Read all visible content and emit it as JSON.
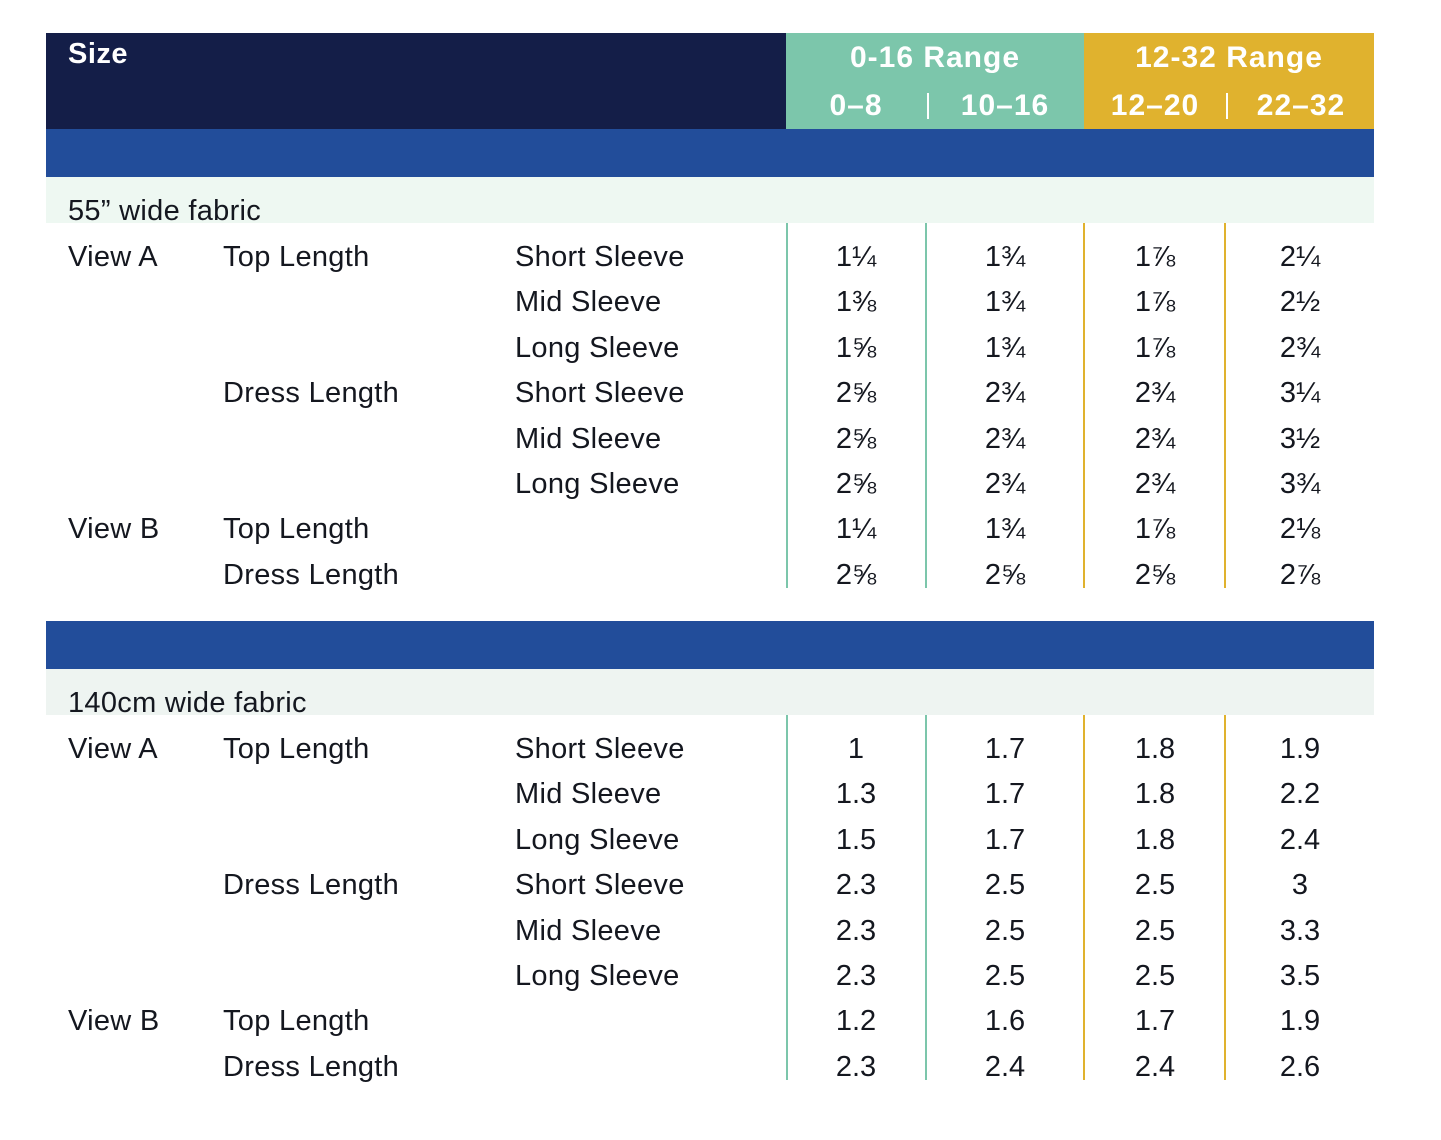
{
  "header": {
    "size_label": "Size",
    "range_0_16": {
      "title": "0-16 Range",
      "col1": "0–8",
      "col2": "10–16"
    },
    "range_12_32": {
      "title": "12-32 Range",
      "col1": "12–20",
      "col2": "22–32"
    }
  },
  "colors": {
    "navy": "#141e48",
    "band_blue": "#224d9a",
    "teal": "#7cc6ab",
    "gold": "#e0b22e",
    "section_tint_1": "#eef8f2",
    "section_tint_2": "#eef4f1"
  },
  "chart_data": {
    "type": "table",
    "columns": [
      "0–8",
      "10–16",
      "12–20",
      "22–32"
    ],
    "sections": [
      {
        "title": "55” wide fabric",
        "rows": [
          {
            "view": "View A",
            "length": "Top Length",
            "sleeve": "Short Sleeve",
            "values": [
              "1¼",
              "1¾",
              "1⅞",
              "2¼"
            ]
          },
          {
            "view": "",
            "length": "",
            "sleeve": "Mid Sleeve",
            "values": [
              "1⅜",
              "1¾",
              "1⅞",
              "2½"
            ]
          },
          {
            "view": "",
            "length": "",
            "sleeve": "Long Sleeve",
            "values": [
              "1⅝",
              "1¾",
              "1⅞",
              "2¾"
            ]
          },
          {
            "view": "",
            "length": "Dress Length",
            "sleeve": "Short Sleeve",
            "values": [
              "2⅝",
              "2¾",
              "2¾",
              "3¼"
            ]
          },
          {
            "view": "",
            "length": "",
            "sleeve": "Mid Sleeve",
            "values": [
              "2⅝",
              "2¾",
              "2¾",
              "3½"
            ]
          },
          {
            "view": "",
            "length": "",
            "sleeve": "Long Sleeve",
            "values": [
              "2⅝",
              "2¾",
              "2¾",
              "3¾"
            ]
          },
          {
            "view": "View B",
            "length": "Top Length",
            "sleeve": "",
            "values": [
              "1¼",
              "1¾",
              "1⅞",
              "2⅛"
            ]
          },
          {
            "view": "",
            "length": "Dress Length",
            "sleeve": "",
            "values": [
              "2⅝",
              "2⅝",
              "2⅝",
              "2⅞"
            ]
          }
        ]
      },
      {
        "title": "140cm wide fabric",
        "rows": [
          {
            "view": "View A",
            "length": "Top Length",
            "sleeve": "Short Sleeve",
            "values": [
              "1",
              "1.7",
              "1.8",
              "1.9"
            ]
          },
          {
            "view": "",
            "length": "",
            "sleeve": "Mid Sleeve",
            "values": [
              "1.3",
              "1.7",
              "1.8",
              "2.2"
            ]
          },
          {
            "view": "",
            "length": "",
            "sleeve": "Long Sleeve",
            "values": [
              "1.5",
              "1.7",
              "1.8",
              "2.4"
            ]
          },
          {
            "view": "",
            "length": "Dress Length",
            "sleeve": "Short Sleeve",
            "values": [
              "2.3",
              "2.5",
              "2.5",
              "3"
            ]
          },
          {
            "view": "",
            "length": "",
            "sleeve": "Mid Sleeve",
            "values": [
              "2.3",
              "2.5",
              "2.5",
              "3.3"
            ]
          },
          {
            "view": "",
            "length": "",
            "sleeve": "Long Sleeve",
            "values": [
              "2.3",
              "2.5",
              "2.5",
              "3.5"
            ]
          },
          {
            "view": "View B",
            "length": "Top Length",
            "sleeve": "",
            "values": [
              "1.2",
              "1.6",
              "1.7",
              "1.9"
            ]
          },
          {
            "view": "",
            "length": "Dress Length",
            "sleeve": "",
            "values": [
              "2.3",
              "2.4",
              "2.4",
              "2.6"
            ]
          }
        ]
      }
    ]
  }
}
